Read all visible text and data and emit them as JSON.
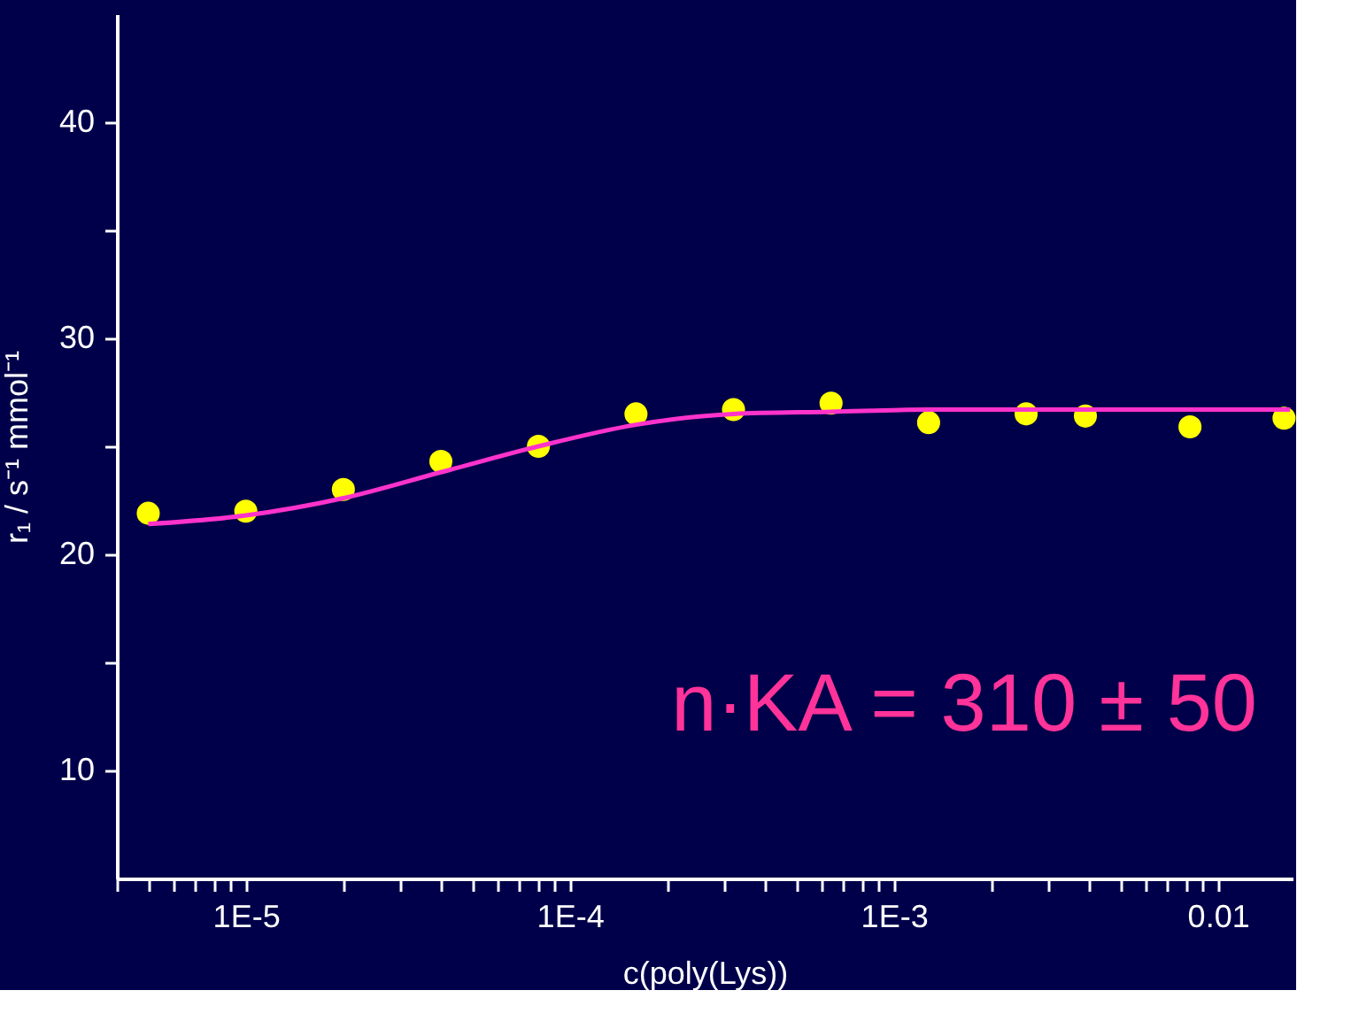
{
  "chart_data": {
    "type": "scatter",
    "xlabel": "c(poly(Lys))",
    "ylabel": "r₁ / s⁻¹ mmol⁻¹",
    "log": "x",
    "grid": false,
    "marker": "circle",
    "xlim": [
      4e-06,
      0.017
    ],
    "ylim": [
      5,
      45
    ],
    "xticks": [
      {
        "value": 4e-06,
        "label": null
      },
      {
        "value": 5e-06,
        "label": null
      },
      {
        "value": 6e-06,
        "label": null
      },
      {
        "value": 7e-06,
        "label": null
      },
      {
        "value": 8e-06,
        "label": null
      },
      {
        "value": 9e-06,
        "label": null
      },
      {
        "value": 1e-05,
        "label": "1E-5"
      },
      {
        "value": 2e-05,
        "label": null
      },
      {
        "value": 3e-05,
        "label": null
      },
      {
        "value": 4e-05,
        "label": null
      },
      {
        "value": 5e-05,
        "label": null
      },
      {
        "value": 6e-05,
        "label": null
      },
      {
        "value": 7e-05,
        "label": null
      },
      {
        "value": 8e-05,
        "label": null
      },
      {
        "value": 9e-05,
        "label": null
      },
      {
        "value": 0.0001,
        "label": "1E-4"
      },
      {
        "value": 0.0002,
        "label": null
      },
      {
        "value": 0.0003,
        "label": null
      },
      {
        "value": 0.0004,
        "label": null
      },
      {
        "value": 0.0005,
        "label": null
      },
      {
        "value": 0.0006,
        "label": null
      },
      {
        "value": 0.0007,
        "label": null
      },
      {
        "value": 0.0008,
        "label": null
      },
      {
        "value": 0.0009,
        "label": null
      },
      {
        "value": 0.001,
        "label": "1E-3"
      },
      {
        "value": 0.002,
        "label": null
      },
      {
        "value": 0.003,
        "label": null
      },
      {
        "value": 0.004,
        "label": null
      },
      {
        "value": 0.005,
        "label": null
      },
      {
        "value": 0.006,
        "label": null
      },
      {
        "value": 0.007,
        "label": null
      },
      {
        "value": 0.008,
        "label": null
      },
      {
        "value": 0.009,
        "label": null
      },
      {
        "value": 0.01,
        "label": "0.01"
      }
    ],
    "yticks": [
      10,
      {
        "value": 15,
        "label": null
      },
      20,
      {
        "value": 25,
        "label": null
      },
      30,
      {
        "value": 35,
        "label": null
      },
      40
    ],
    "annotations": [
      "n·KA = 310 ± 50"
    ],
    "series": [
      {
        "color": "#ffff00",
        "x": [
          5e-06,
          1e-05,
          2e-05,
          4e-05,
          8e-05,
          0.00016,
          0.00032,
          0.00064,
          0.00128,
          0.00256,
          0.0039,
          0.0082,
          0.016
        ],
        "values": [
          21.9,
          22.0,
          23.0,
          24.3,
          25.0,
          26.5,
          26.7,
          27.0,
          26.1,
          26.5,
          26.4,
          25.9,
          26.3
        ]
      },
      {
        "type": "line",
        "color": "#ff33cc",
        "marker": "none",
        "line_style": "solid",
        "x": [
          5e-06,
          1e-05,
          2e-05,
          4e-05,
          8e-05,
          0.00016,
          0.00032,
          0.00064,
          0.00128,
          0.0167
        ],
        "values": [
          21.4,
          21.8,
          22.6,
          23.8,
          25.0,
          26.0,
          26.5,
          26.6,
          26.7,
          26.7
        ]
      }
    ]
  }
}
